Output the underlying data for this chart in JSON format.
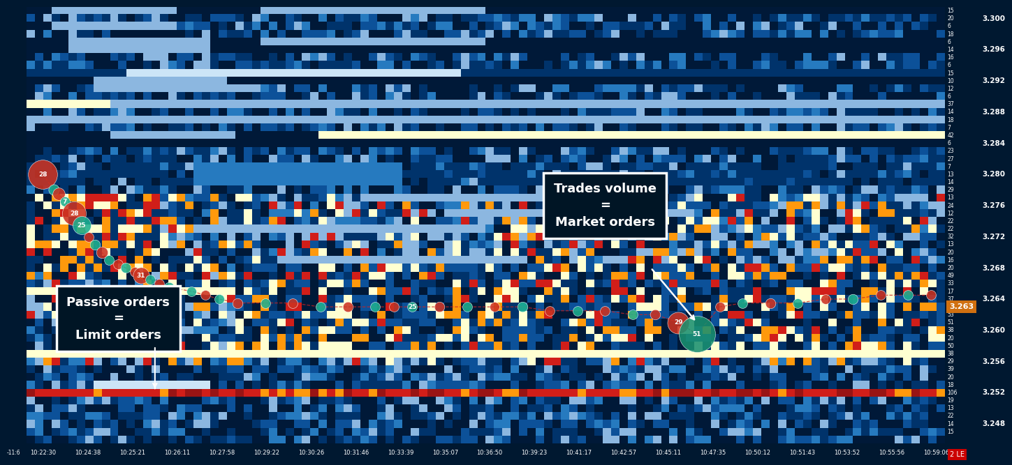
{
  "bg_color": "#001830",
  "price_min": 3.2455,
  "price_max": 3.3015,
  "price_levels": [
    3.3,
    3.296,
    3.292,
    3.288,
    3.284,
    3.28,
    3.276,
    3.272,
    3.268,
    3.264,
    3.26,
    3.256,
    3.252,
    3.248
  ],
  "time_labels": [
    "-11:6",
    "10:22:30",
    "10:24:38",
    "10:25:21",
    "10:26:11",
    "10:27:58",
    "10:29:22",
    "10:30:26",
    "10:31:46",
    "10:33:39",
    "10:35:07",
    "10:36:50",
    "10:39:23",
    "10:41:17",
    "10:42:57",
    "10:45:11",
    "10:47:35",
    "10:50:12",
    "10:51:43",
    "10:53:52",
    "10:55:56",
    "10:59:06"
  ],
  "current_price": 3.263,
  "current_price_label": "3.263",
  "annotation1_text": "Passive orders\n=\nLimit orders",
  "annotation2_text": "Trades volume\n=\nMarket orders",
  "n_time_cols": 110,
  "n_price_rows": 56,
  "right_nums": [
    "15",
    "20",
    "6",
    "18",
    "6",
    "14",
    "16",
    "6",
    "15",
    "10",
    "12",
    "6",
    "37",
    "14",
    "18",
    "7",
    "42",
    "6",
    "23",
    "27",
    "7",
    "13",
    "14",
    "29",
    "13",
    "24",
    "12",
    "22",
    "22",
    "32",
    "13",
    "20",
    "16",
    "20",
    "49",
    "33",
    "17",
    "37",
    "46",
    "53",
    "51",
    "38",
    "20",
    "50",
    "38",
    "29",
    "39",
    "20",
    "18",
    "106",
    "19",
    "13",
    "22",
    "14",
    "15"
  ]
}
